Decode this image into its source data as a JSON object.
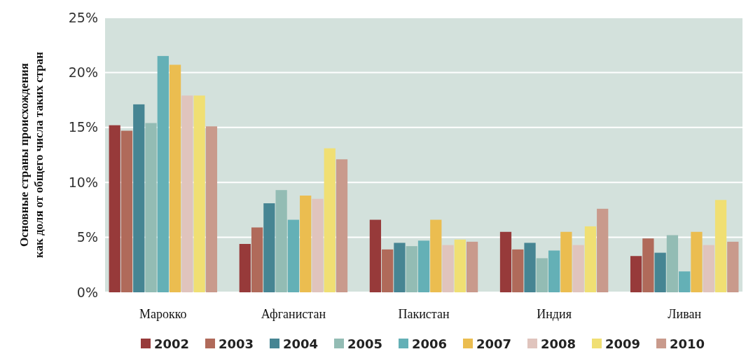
{
  "chart_data": {
    "type": "bar",
    "ylabel": "Основные страны происхождения\nкак доля от общего числа таких стран",
    "categories": [
      "Марокко",
      "Афганистан",
      "Пакистан",
      "Индия",
      "Ливан"
    ],
    "series": [
      {
        "name": "2002",
        "color": "#973a3a",
        "values": [
          15.2,
          4.4,
          6.6,
          5.5,
          3.3
        ]
      },
      {
        "name": "2003",
        "color": "#b06a5a",
        "values": [
          14.7,
          5.9,
          3.9,
          3.9,
          4.9
        ]
      },
      {
        "name": "2004",
        "color": "#468593",
        "values": [
          17.1,
          8.1,
          4.5,
          4.5,
          3.6
        ]
      },
      {
        "name": "2005",
        "color": "#93bcb4",
        "values": [
          15.4,
          9.3,
          4.2,
          3.1,
          5.2
        ]
      },
      {
        "name": "2006",
        "color": "#64b0b6",
        "values": [
          21.5,
          6.6,
          4.7,
          3.8,
          1.9
        ]
      },
      {
        "name": "2007",
        "color": "#ebbd50",
        "values": [
          20.7,
          8.8,
          6.6,
          5.5,
          5.5
        ]
      },
      {
        "name": "2008",
        "color": "#e0c4bd",
        "values": [
          17.9,
          8.5,
          4.3,
          4.3,
          4.3
        ]
      },
      {
        "name": "2009",
        "color": "#f0df73",
        "values": [
          17.9,
          13.1,
          4.8,
          6.0,
          8.4
        ]
      },
      {
        "name": "2010",
        "color": "#c99a8c",
        "values": [
          15.1,
          12.1,
          4.6,
          7.6,
          4.6
        ]
      }
    ],
    "ylim": [
      0,
      25
    ],
    "yticks": [
      {
        "value": 0,
        "label": "0%"
      },
      {
        "value": 5,
        "label": "5%"
      },
      {
        "value": 10,
        "label": "10%"
      },
      {
        "value": 15,
        "label": "15%"
      },
      {
        "value": 20,
        "label": "20%"
      },
      {
        "value": 25,
        "label": "25%"
      }
    ],
    "grid": "y",
    "legend": "bottom"
  }
}
